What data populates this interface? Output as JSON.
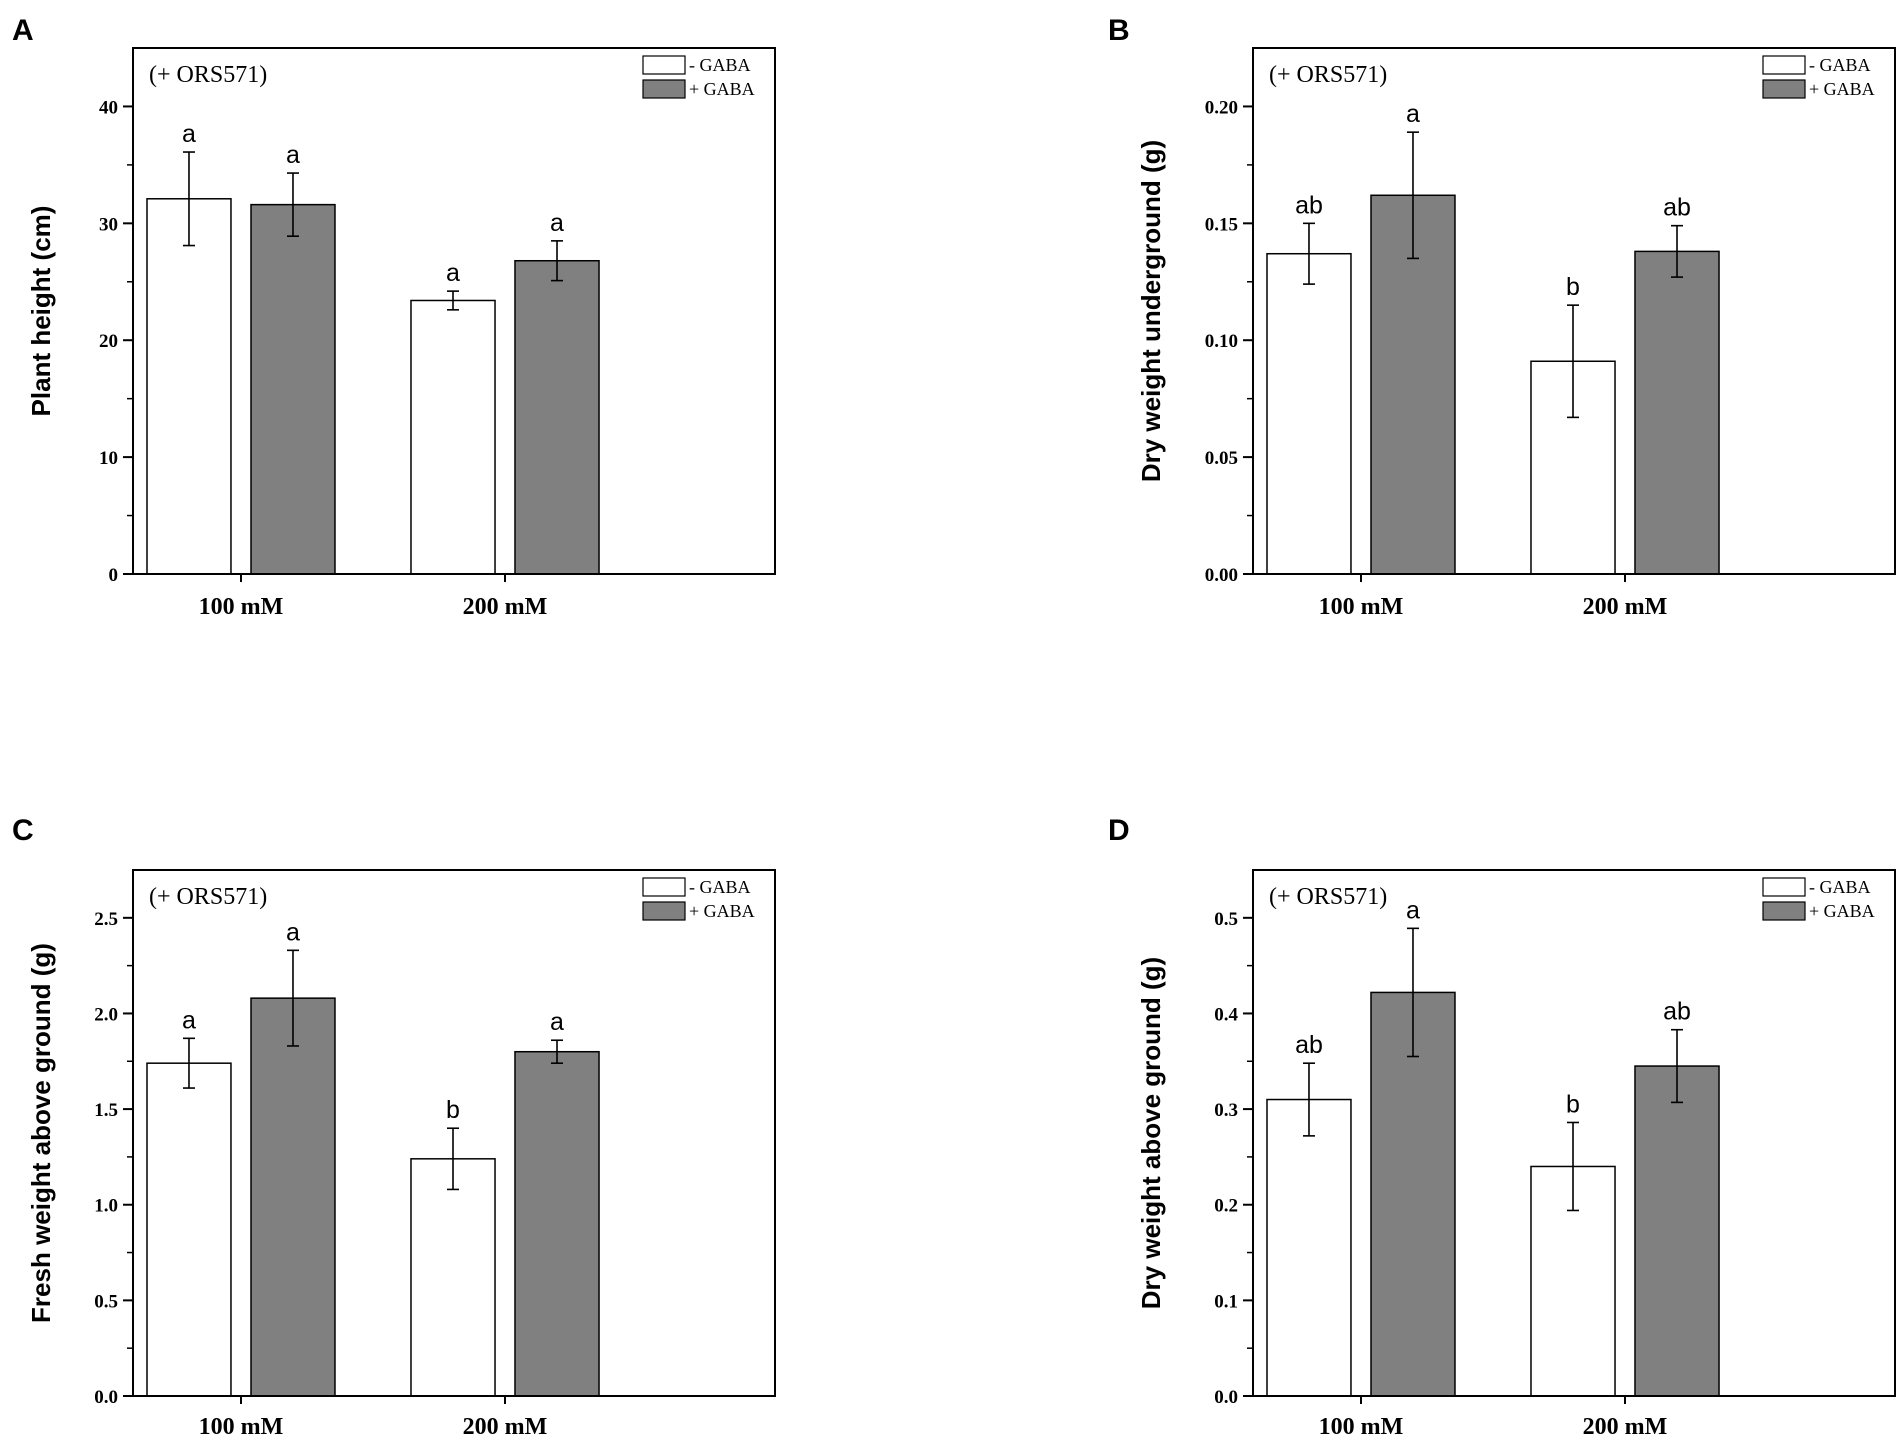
{
  "figure": {
    "panels": [
      "A",
      "B",
      "C",
      "D"
    ]
  },
  "chart_data": [
    {
      "panel": "A",
      "type": "bar",
      "annotation": "(+ ORS571)",
      "ylabel": "Plant height (cm)",
      "xlabel": "",
      "categories": [
        "100 mM",
        "200 mM"
      ],
      "ylim": [
        0,
        45
      ],
      "yticks": [
        0,
        10,
        20,
        30,
        40
      ],
      "ytick_labels": [
        "0",
        "10",
        "20",
        "30",
        "40"
      ],
      "legend": {
        "position": "top-right",
        "entries": [
          "- GABA",
          "+ GABA"
        ]
      },
      "series": [
        {
          "name": "- GABA",
          "color": "#ffffff",
          "values": [
            32.1,
            23.4
          ],
          "errors": [
            4.0,
            0.8
          ],
          "letters": [
            "a",
            "a"
          ]
        },
        {
          "name": "+ GABA",
          "color": "#808080",
          "values": [
            31.6,
            26.8
          ],
          "errors": [
            2.7,
            1.7
          ],
          "letters": [
            "a",
            "a"
          ]
        }
      ]
    },
    {
      "panel": "B",
      "type": "bar",
      "annotation": "(+ ORS571)",
      "ylabel": "Dry weight underground (g)",
      "xlabel": "",
      "categories": [
        "100 mM",
        "200 mM"
      ],
      "ylim": [
        0,
        0.225
      ],
      "yticks": [
        0,
        0.05,
        0.1,
        0.15,
        0.2
      ],
      "ytick_labels": [
        "0.00",
        "0.05",
        "0.10",
        "0.15",
        "0.20"
      ],
      "legend": {
        "position": "top-right",
        "entries": [
          "- GABA",
          "+ GABA"
        ]
      },
      "series": [
        {
          "name": "- GABA",
          "color": "#ffffff",
          "values": [
            0.137,
            0.091
          ],
          "errors": [
            0.013,
            0.024
          ],
          "letters": [
            "ab",
            "b"
          ]
        },
        {
          "name": "+ GABA",
          "color": "#808080",
          "values": [
            0.162,
            0.138
          ],
          "errors": [
            0.027,
            0.011
          ],
          "letters": [
            "a",
            "ab"
          ]
        }
      ]
    },
    {
      "panel": "C",
      "type": "bar",
      "annotation": "(+ ORS571)",
      "ylabel": "Fresh weight above ground (g)",
      "xlabel": "",
      "categories": [
        "100 mM",
        "200 mM"
      ],
      "ylim": [
        0,
        2.75
      ],
      "yticks": [
        0,
        0.5,
        1.0,
        1.5,
        2.0,
        2.5
      ],
      "ytick_labels": [
        "0.0",
        "0.5",
        "1.0",
        "1.5",
        "2.0",
        "2.5"
      ],
      "legend": {
        "position": "top-right",
        "entries": [
          "- GABA",
          "+ GABA"
        ]
      },
      "series": [
        {
          "name": "- GABA",
          "color": "#ffffff",
          "values": [
            1.74,
            1.24
          ],
          "errors": [
            0.13,
            0.16
          ],
          "letters": [
            "a",
            "b"
          ]
        },
        {
          "name": "+ GABA",
          "color": "#808080",
          "values": [
            2.08,
            1.8
          ],
          "errors": [
            0.25,
            0.06
          ],
          "letters": [
            "a",
            "a"
          ]
        }
      ]
    },
    {
      "panel": "D",
      "type": "bar",
      "annotation": "(+ ORS571)",
      "ylabel": "Dry weight above ground (g)",
      "xlabel": "",
      "categories": [
        "100 mM",
        "200 mM"
      ],
      "ylim": [
        0,
        0.55
      ],
      "yticks": [
        0,
        0.1,
        0.2,
        0.3,
        0.4,
        0.5
      ],
      "ytick_labels": [
        "0.0",
        "0.1",
        "0.2",
        "0.3",
        "0.4",
        "0.5"
      ],
      "legend": {
        "position": "top-right",
        "entries": [
          "- GABA",
          "+ GABA"
        ]
      },
      "series": [
        {
          "name": "- GABA",
          "color": "#ffffff",
          "values": [
            0.31,
            0.24
          ],
          "errors": [
            0.038,
            0.046
          ],
          "letters": [
            "ab",
            "b"
          ]
        },
        {
          "name": "+ GABA",
          "color": "#808080",
          "values": [
            0.422,
            0.345
          ],
          "errors": [
            0.067,
            0.038
          ],
          "letters": [
            "a",
            "ab"
          ]
        }
      ]
    }
  ]
}
